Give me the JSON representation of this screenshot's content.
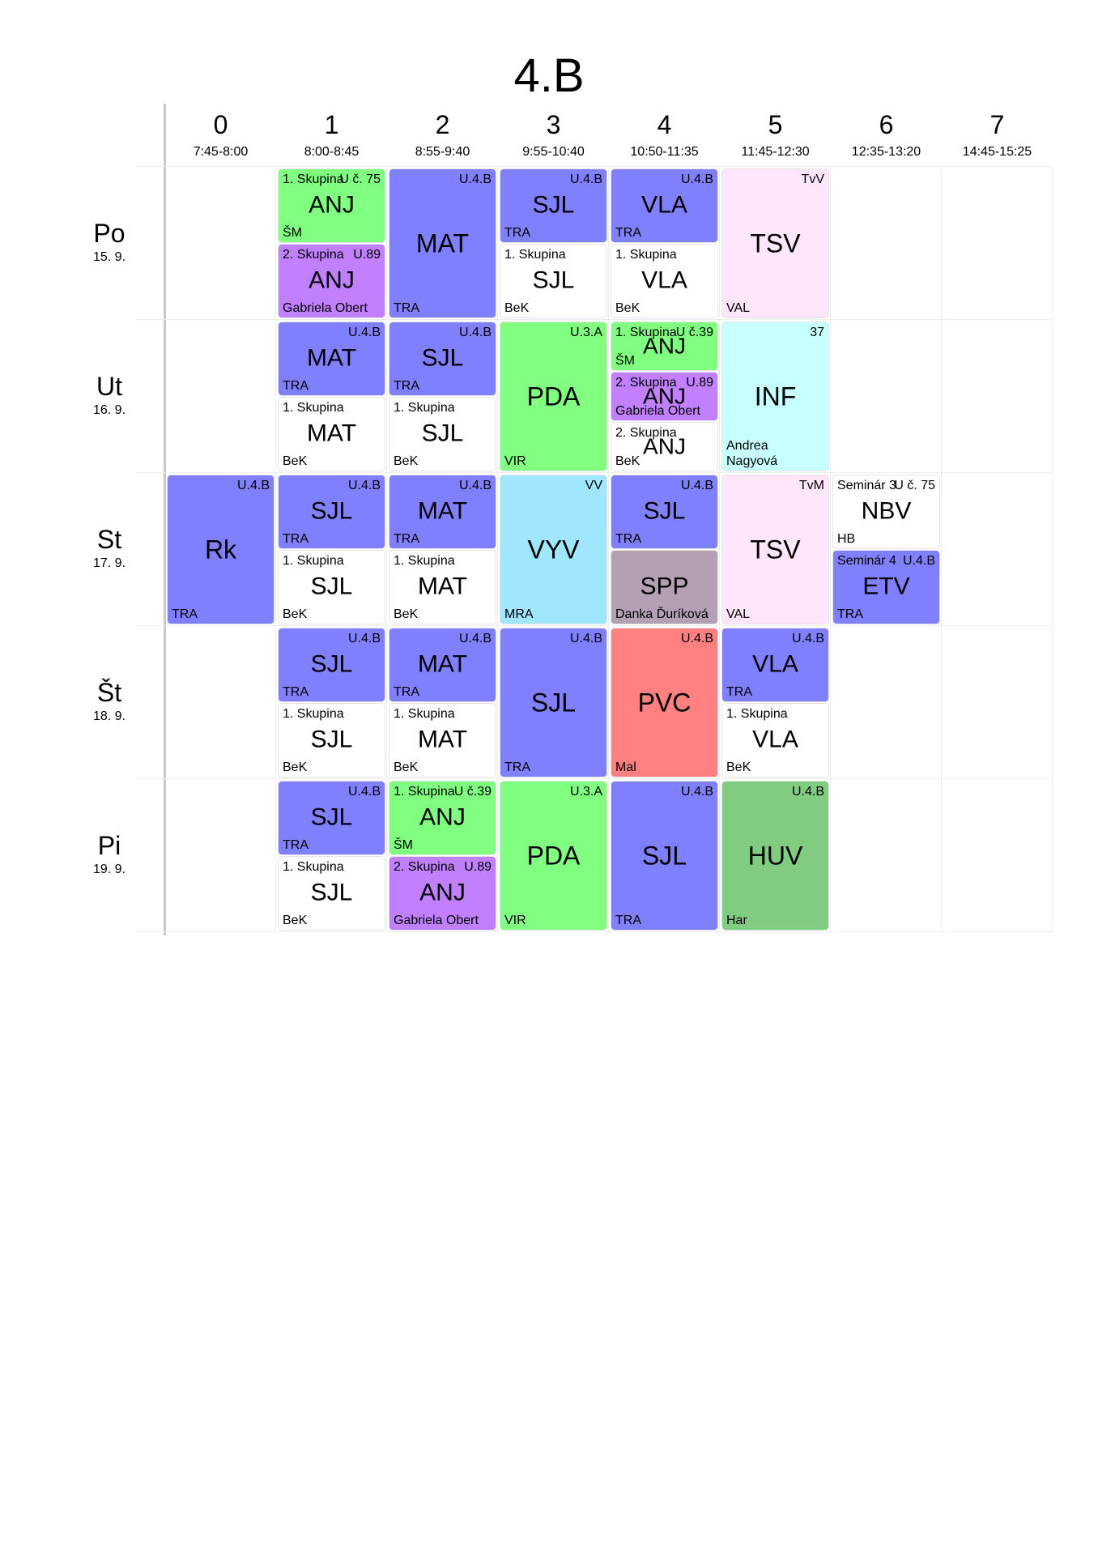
{
  "title": "4.B",
  "periods": [
    {
      "num": "0",
      "time": "7:45-8:00"
    },
    {
      "num": "1",
      "time": "8:00-8:45"
    },
    {
      "num": "2",
      "time": "8:55-9:40"
    },
    {
      "num": "3",
      "time": "9:55-10:40"
    },
    {
      "num": "4",
      "time": "10:50-11:35"
    },
    {
      "num": "5",
      "time": "11:45-12:30"
    },
    {
      "num": "6",
      "time": "12:35-13:20"
    },
    {
      "num": "7",
      "time": "14:45-15:25"
    }
  ],
  "days": [
    {
      "name": "Po",
      "date": "15. 9."
    },
    {
      "name": "Ut",
      "date": "16. 9."
    },
    {
      "name": "St",
      "date": "17. 9."
    },
    {
      "name": "Št",
      "date": "18. 9."
    },
    {
      "name": "Pi",
      "date": "19. 9."
    }
  ],
  "colors": {
    "blue": "#8080ff",
    "green": "#80ff80",
    "purple": "#c080ff",
    "white": "#ffffff",
    "pink": "#ffe6fa",
    "cyan": "#c8ffff",
    "lightblue": "#a0e6ff",
    "mauve": "#b4a0b4",
    "red": "#ff8080",
    "darkgreen": "#80cc80"
  },
  "lessons": [
    {
      "day": 0,
      "period": 1,
      "part": "top",
      "tl": "1. Skupina",
      "tr": "U č. 75",
      "subject": "ANJ",
      "bl": "ŠM",
      "color": "green"
    },
    {
      "day": 0,
      "period": 1,
      "part": "bottom",
      "tl": "2. Skupina",
      "tr": "U.89",
      "subject": "ANJ",
      "bl": "Gabriela Obert",
      "color": "purple"
    },
    {
      "day": 0,
      "period": 2,
      "part": "full",
      "tl": "",
      "tr": "U.4.B",
      "subject": "MAT",
      "bl": "TRA",
      "color": "blue"
    },
    {
      "day": 0,
      "period": 3,
      "part": "top",
      "tl": "",
      "tr": "U.4.B",
      "subject": "SJL",
      "bl": "TRA",
      "color": "blue"
    },
    {
      "day": 0,
      "period": 3,
      "part": "bottom",
      "tl": "1. Skupina",
      "tr": "",
      "subject": "SJL",
      "bl": "BeK",
      "color": "white"
    },
    {
      "day": 0,
      "period": 4,
      "part": "top",
      "tl": "",
      "tr": "U.4.B",
      "subject": "VLA",
      "bl": "TRA",
      "color": "blue"
    },
    {
      "day": 0,
      "period": 4,
      "part": "bottom",
      "tl": "1. Skupina",
      "tr": "",
      "subject": "VLA",
      "bl": "BeK",
      "color": "white"
    },
    {
      "day": 0,
      "period": 5,
      "part": "full",
      "tl": "",
      "tr": "TvV",
      "subject": "TSV",
      "bl": "VAL",
      "color": "pink"
    },
    {
      "day": 1,
      "period": 1,
      "part": "top",
      "tl": "",
      "tr": "U.4.B",
      "subject": "MAT",
      "bl": "TRA",
      "color": "blue"
    },
    {
      "day": 1,
      "period": 1,
      "part": "bottom",
      "tl": "1. Skupina",
      "tr": "",
      "subject": "MAT",
      "bl": "BeK",
      "color": "white"
    },
    {
      "day": 1,
      "period": 2,
      "part": "top",
      "tl": "",
      "tr": "U.4.B",
      "subject": "SJL",
      "bl": "TRA",
      "color": "blue"
    },
    {
      "day": 1,
      "period": 2,
      "part": "bottom",
      "tl": "1. Skupina",
      "tr": "",
      "subject": "SJL",
      "bl": "BeK",
      "color": "white"
    },
    {
      "day": 1,
      "period": 3,
      "part": "full",
      "tl": "",
      "tr": "U.3.A",
      "subject": "PDA",
      "bl": "VIR",
      "color": "green"
    },
    {
      "day": 1,
      "period": 4,
      "part": "third1",
      "tl": "1. Skupina",
      "tr": "U č.39",
      "subject": "ANJ",
      "bl": "ŠM",
      "color": "green"
    },
    {
      "day": 1,
      "period": 4,
      "part": "third2",
      "tl": "2. Skupina",
      "tr": "U.89",
      "subject": "ANJ",
      "bl": "Gabriela Obert",
      "color": "purple"
    },
    {
      "day": 1,
      "period": 4,
      "part": "third3",
      "tl": "2. Skupina",
      "tr": "",
      "subject": "ANJ",
      "bl": "BeK",
      "color": "white"
    },
    {
      "day": 1,
      "period": 5,
      "part": "full",
      "tl": "",
      "tr": "37",
      "subject": "INF",
      "bl": "Andrea Nagyová",
      "color": "cyan"
    },
    {
      "day": 2,
      "period": 0,
      "part": "full",
      "tl": "",
      "tr": "U.4.B",
      "subject": "Rk",
      "bl": "TRA",
      "color": "blue"
    },
    {
      "day": 2,
      "period": 1,
      "part": "top",
      "tl": "",
      "tr": "U.4.B",
      "subject": "SJL",
      "bl": "TRA",
      "color": "blue"
    },
    {
      "day": 2,
      "period": 1,
      "part": "bottom",
      "tl": "1. Skupina",
      "tr": "",
      "subject": "SJL",
      "bl": "BeK",
      "color": "white"
    },
    {
      "day": 2,
      "period": 2,
      "part": "top",
      "tl": "",
      "tr": "U.4.B",
      "subject": "MAT",
      "bl": "TRA",
      "color": "blue"
    },
    {
      "day": 2,
      "period": 2,
      "part": "bottom",
      "tl": "1. Skupina",
      "tr": "",
      "subject": "MAT",
      "bl": "BeK",
      "color": "white"
    },
    {
      "day": 2,
      "period": 3,
      "part": "full",
      "tl": "",
      "tr": "VV",
      "subject": "VYV",
      "bl": "MRA",
      "color": "lightblue"
    },
    {
      "day": 2,
      "period": 4,
      "part": "top",
      "tl": "",
      "tr": "U.4.B",
      "subject": "SJL",
      "bl": "TRA",
      "color": "blue"
    },
    {
      "day": 2,
      "period": 4,
      "part": "bottom",
      "tl": "",
      "tr": "",
      "subject": "SPP",
      "bl": "Danka Ďuríková",
      "color": "mauve"
    },
    {
      "day": 2,
      "period": 5,
      "part": "full",
      "tl": "",
      "tr": "TvM",
      "subject": "TSV",
      "bl": "VAL",
      "color": "pink"
    },
    {
      "day": 2,
      "period": 6,
      "part": "top",
      "tl": "Seminár 3",
      "tr": "U č. 75",
      "subject": "NBV",
      "bl": "HB",
      "color": "white"
    },
    {
      "day": 2,
      "period": 6,
      "part": "bottom",
      "tl": "Seminár 4",
      "tr": "U.4.B",
      "subject": "ETV",
      "bl": "TRA",
      "color": "blue"
    },
    {
      "day": 3,
      "period": 1,
      "part": "top",
      "tl": "",
      "tr": "U.4.B",
      "subject": "SJL",
      "bl": "TRA",
      "color": "blue"
    },
    {
      "day": 3,
      "period": 1,
      "part": "bottom",
      "tl": "1. Skupina",
      "tr": "",
      "subject": "SJL",
      "bl": "BeK",
      "color": "white"
    },
    {
      "day": 3,
      "period": 2,
      "part": "top",
      "tl": "",
      "tr": "U.4.B",
      "subject": "MAT",
      "bl": "TRA",
      "color": "blue"
    },
    {
      "day": 3,
      "period": 2,
      "part": "bottom",
      "tl": "1. Skupina",
      "tr": "",
      "subject": "MAT",
      "bl": "BeK",
      "color": "white"
    },
    {
      "day": 3,
      "period": 3,
      "part": "full",
      "tl": "",
      "tr": "U.4.B",
      "subject": "SJL",
      "bl": "TRA",
      "color": "blue"
    },
    {
      "day": 3,
      "period": 4,
      "part": "full",
      "tl": "",
      "tr": "U.4.B",
      "subject": "PVC",
      "bl": "Mal",
      "color": "red"
    },
    {
      "day": 3,
      "period": 5,
      "part": "top",
      "tl": "",
      "tr": "U.4.B",
      "subject": "VLA",
      "bl": "TRA",
      "color": "blue"
    },
    {
      "day": 3,
      "period": 5,
      "part": "bottom",
      "tl": "1. Skupina",
      "tr": "",
      "subject": "VLA",
      "bl": "BeK",
      "color": "white"
    },
    {
      "day": 4,
      "period": 1,
      "part": "top",
      "tl": "",
      "tr": "U.4.B",
      "subject": "SJL",
      "bl": "TRA",
      "color": "blue"
    },
    {
      "day": 4,
      "period": 1,
      "part": "bottom",
      "tl": "1. Skupina",
      "tr": "",
      "subject": "SJL",
      "bl": "BeK",
      "color": "white"
    },
    {
      "day": 4,
      "period": 2,
      "part": "top",
      "tl": "1. Skupina",
      "tr": "U č.39",
      "subject": "ANJ",
      "bl": "ŠM",
      "color": "green"
    },
    {
      "day": 4,
      "period": 2,
      "part": "bottom",
      "tl": "2. Skupina",
      "tr": "U.89",
      "subject": "ANJ",
      "bl": "Gabriela Obert",
      "color": "purple"
    },
    {
      "day": 4,
      "period": 3,
      "part": "full",
      "tl": "",
      "tr": "U.3.A",
      "subject": "PDA",
      "bl": "VIR",
      "color": "green"
    },
    {
      "day": 4,
      "period": 4,
      "part": "full",
      "tl": "",
      "tr": "U.4.B",
      "subject": "SJL",
      "bl": "TRA",
      "color": "blue"
    },
    {
      "day": 4,
      "period": 5,
      "part": "full",
      "tl": "",
      "tr": "U.4.B",
      "subject": "HUV",
      "bl": "Har",
      "color": "darkgreen"
    }
  ]
}
